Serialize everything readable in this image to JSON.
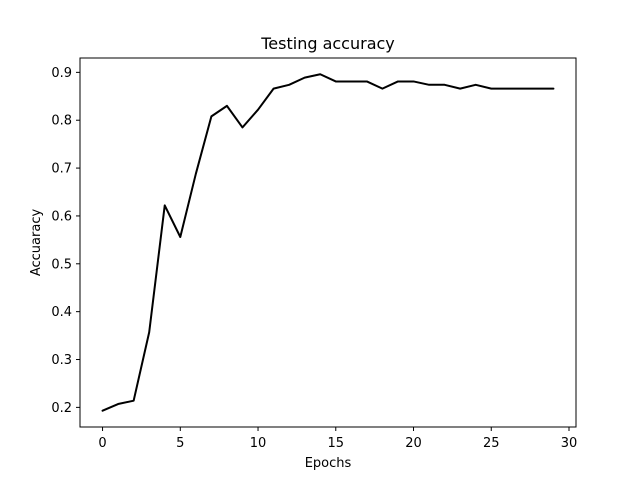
{
  "chart_data": {
    "type": "line",
    "title": "Testing accuracy",
    "xlabel": "Epochs",
    "ylabel": "Accuaracy",
    "xlim": [
      -1.45,
      30.45
    ],
    "ylim": [
      0.159,
      0.93
    ],
    "xticks": [
      0,
      5,
      10,
      15,
      20,
      25,
      30
    ],
    "yticks": [
      0.2,
      0.3,
      0.4,
      0.5,
      0.6,
      0.7,
      0.8,
      0.9
    ],
    "xtick_labels": [
      "0",
      "5",
      "10",
      "15",
      "20",
      "25",
      "30"
    ],
    "ytick_labels": [
      "0.2",
      "0.3",
      "0.4",
      "0.5",
      "0.6",
      "0.7",
      "0.8",
      "0.9"
    ],
    "grid": false,
    "series": [
      {
        "color": "#000000",
        "x": [
          0,
          1,
          2,
          3,
          4,
          5,
          6,
          7,
          8,
          9,
          10,
          11,
          12,
          13,
          14,
          15,
          16,
          17,
          18,
          19,
          20,
          21,
          22,
          23,
          24,
          25,
          26,
          27,
          28,
          29
        ],
        "y": [
          0.193,
          0.207,
          0.214,
          0.357,
          0.622,
          0.556,
          0.688,
          0.808,
          0.83,
          0.785,
          0.822,
          0.866,
          0.874,
          0.889,
          0.896,
          0.881,
          0.881,
          0.881,
          0.866,
          0.881,
          0.881,
          0.874,
          0.874,
          0.866,
          0.874,
          0.866,
          0.866,
          0.866,
          0.866,
          0.866
        ]
      }
    ]
  }
}
